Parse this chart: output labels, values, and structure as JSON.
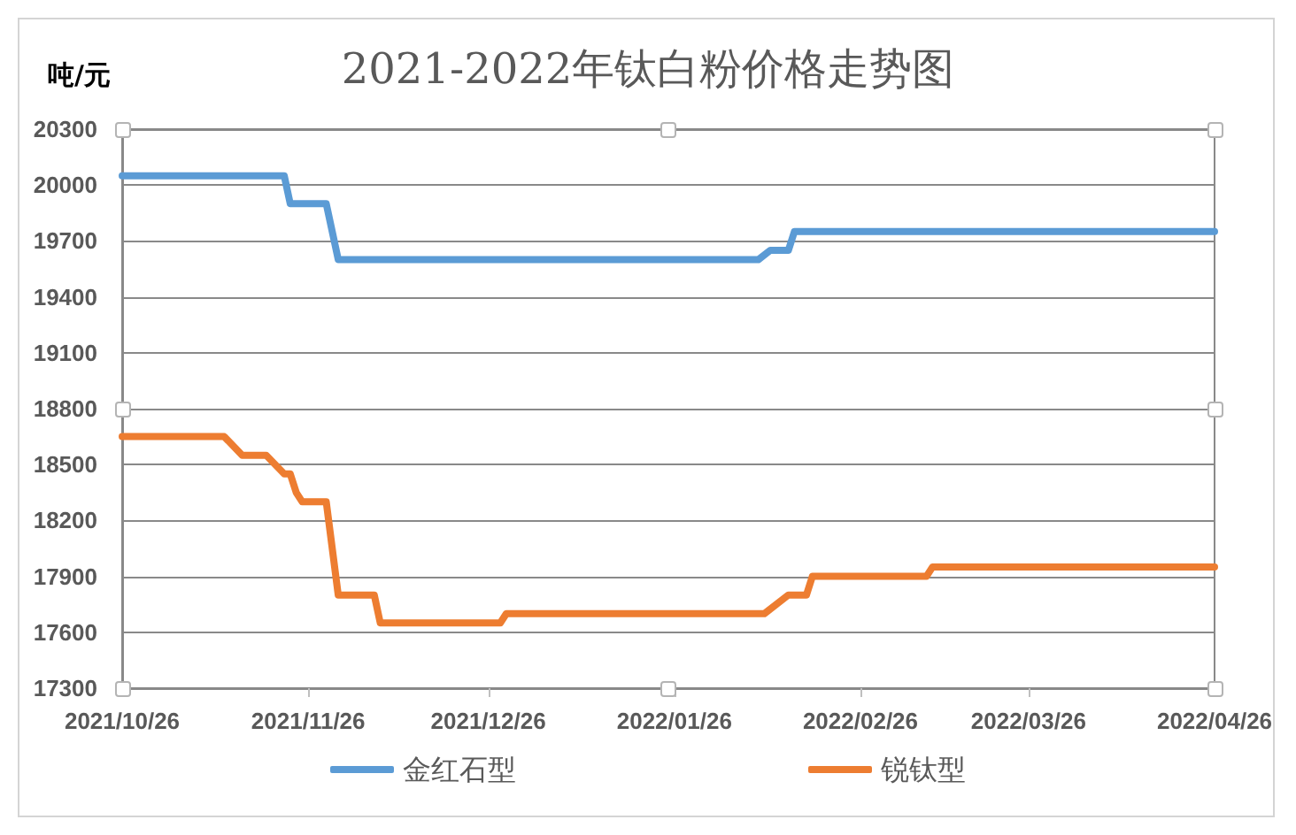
{
  "chart_data": {
    "type": "line",
    "title": "2021-2022年钛白粉价格走势图",
    "ylabel": "吨/元",
    "series": [
      {
        "name": "金红石型",
        "color": "#5b9bd5",
        "x": [
          "2021-10-26",
          "2021-11-22",
          "2021-11-23",
          "2021-11-29",
          "2021-12-01",
          "2022-02-09",
          "2022-02-11",
          "2022-02-14",
          "2022-02-15",
          "2022-04-26"
        ],
        "values": [
          20050,
          20050,
          19900,
          19900,
          19600,
          19600,
          19650,
          19650,
          19750,
          19750
        ]
      },
      {
        "name": "锐钛型",
        "color": "#ed7d31",
        "x": [
          "2021-10-26",
          "2021-11-12",
          "2021-11-15",
          "2021-11-19",
          "2021-11-22",
          "2021-11-23",
          "2021-11-24",
          "2021-11-25",
          "2021-11-29",
          "2021-12-01",
          "2021-12-07",
          "2021-12-08",
          "2021-12-28",
          "2021-12-29",
          "2022-02-10",
          "2022-02-14",
          "2022-02-17",
          "2022-02-18",
          "2022-03-09",
          "2022-03-10",
          "2022-04-26"
        ],
        "values": [
          18650,
          18650,
          18550,
          18550,
          18450,
          18450,
          18350,
          18300,
          18300,
          17800,
          17800,
          17650,
          17650,
          17700,
          17700,
          17800,
          17800,
          17900,
          17900,
          17950,
          17950
        ]
      }
    ],
    "xlim": [
      "2021-10-26",
      "2022-04-26"
    ],
    "xticks": [
      {
        "value": "2021-10-26",
        "label": "2021/10/26"
      },
      {
        "value": "2021-11-26",
        "label": "2021/11/26"
      },
      {
        "value": "2021-12-26",
        "label": "2021/12/26"
      },
      {
        "value": "2022-01-26",
        "label": "2022/01/26"
      },
      {
        "value": "2022-02-26",
        "label": "2022/02/26"
      },
      {
        "value": "2022-03-26",
        "label": "2022/03/26"
      },
      {
        "value": "2022-04-26",
        "label": "2022/04/26"
      }
    ],
    "ylim": [
      17300,
      20300
    ],
    "yticks": [
      17300,
      17600,
      17900,
      18200,
      18500,
      18800,
      19100,
      19400,
      19700,
      20000,
      20300
    ],
    "grid": "y",
    "legend": "bottom",
    "marker": "none",
    "line_style": "solid"
  }
}
